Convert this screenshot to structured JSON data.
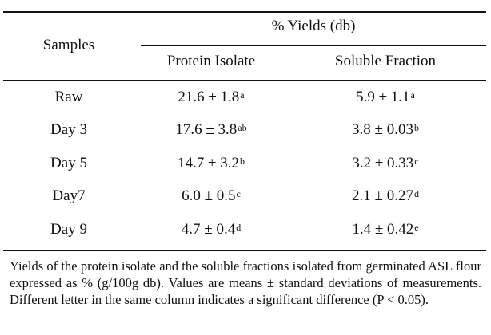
{
  "table": {
    "header": {
      "samples": "Samples",
      "group": "% Yields (db)",
      "col1": "Protein Isolate",
      "col2": "Soluble Fraction"
    },
    "rows": [
      {
        "sample": "Raw",
        "pi": "21.6 ± 1.8",
        "pi_sup": "a",
        "sf": "5.9 ± 1.1",
        "sf_sup": "a"
      },
      {
        "sample": "Day 3",
        "pi": "17.6 ± 3.8",
        "pi_sup": "ab",
        "sf": "3.8 ± 0.03",
        "sf_sup": "b"
      },
      {
        "sample": "Day 5",
        "pi": "14.7 ± 3.2",
        "pi_sup": "b",
        "sf": "3.2 ± 0.33",
        "sf_sup": "c"
      },
      {
        "sample": "Day7",
        "pi": "6.0 ± 0.5",
        "pi_sup": "c",
        "sf": "2.1 ± 0.27",
        "sf_sup": "d"
      },
      {
        "sample": "Day 9",
        "pi": "4.7 ± 0.4",
        "pi_sup": "d",
        "sf": "1.4 ± 0.42",
        "sf_sup": "e"
      }
    ]
  },
  "footnote": "Yields of the protein isolate and the soluble fractions isolated from germinated ASL flour expressed as % (g/100g db). Values are means ± standard deviations of measurements. Different letter in the same column indicates a significant difference (P < 0.05)."
}
